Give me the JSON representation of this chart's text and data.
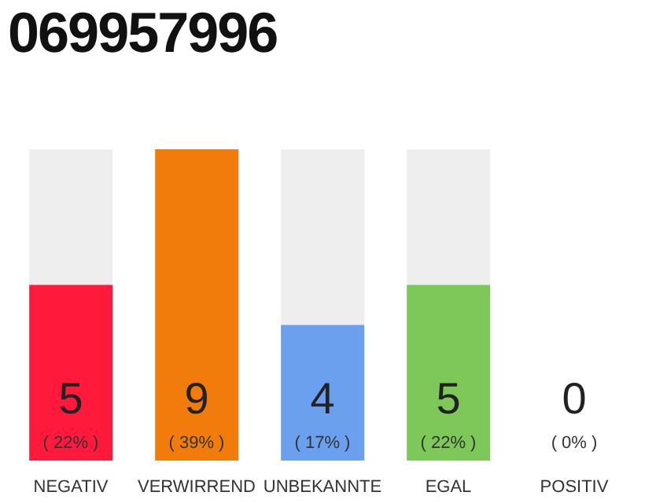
{
  "chart_data": {
    "type": "bar",
    "title": "069957996",
    "categories": [
      "NEGATIV",
      "VERWIRREND",
      "UNBEKANNTE",
      "EGAL",
      "POSITIV"
    ],
    "values": [
      22,
      39,
      17,
      22,
      0
    ],
    "colors": [
      "#ff1a3c",
      "#f27c0b",
      "#6aa0ee",
      "#7ec85a",
      "#cccccc"
    ],
    "value_labels": [
      "( 22% )",
      "( 39% )",
      "( 17% )",
      "( 22% )",
      "( 0% )"
    ],
    "annotations": [
      "5",
      "9",
      "4",
      "5",
      "0"
    ]
  }
}
